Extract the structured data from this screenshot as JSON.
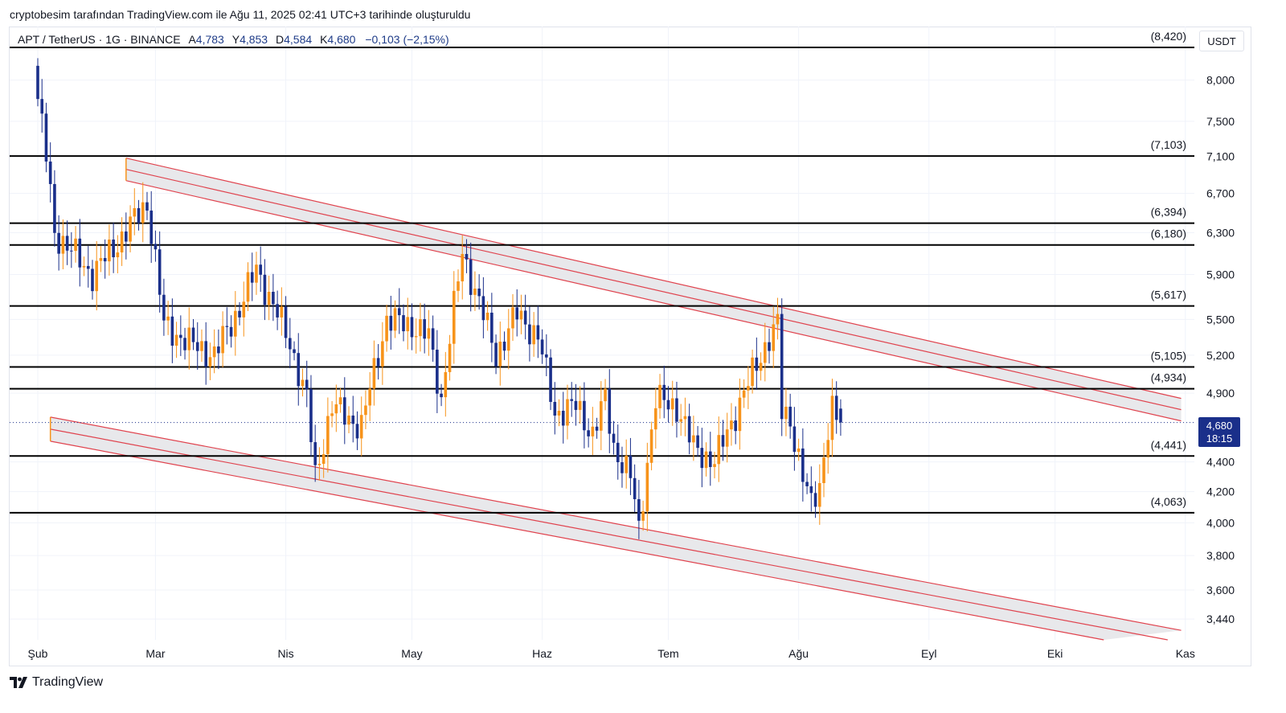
{
  "caption": "cryptobesim tarafından TradingView.com ile Ağu 11, 2025 02:41 UTC+3 tarihinde oluşturuldu",
  "legend": {
    "symbol": "APT / TetherUS · 1G · BINANCE",
    "open_label": "A",
    "open": "4,783",
    "high_label": "Y",
    "high": "4,853",
    "low_label": "D",
    "low": "4,584",
    "close_label": "K",
    "close": "4,680",
    "change": "−0,103 (−2,15%)"
  },
  "unit": "USDT",
  "current_price": {
    "value": "4,680",
    "countdown": "18:15"
  },
  "brand": "TradingView",
  "colors": {
    "up": "#f7931a",
    "down": "#1a2f8a",
    "channel": "#e0434e",
    "level": "#000000",
    "fill": "#e6e6e9"
  },
  "chart_data": {
    "type": "candlestick",
    "timeframe": "1G",
    "x_ticks": [
      "Şub",
      "Mar",
      "Nis",
      "May",
      "Haz",
      "Tem",
      "Ağu",
      "Eyl",
      "Eki",
      "Kas"
    ],
    "y_ticks": [
      "8,000",
      "7,500",
      "7,100",
      "6,700",
      "6,300",
      "5,900",
      "5,500",
      "5,200",
      "4,900",
      "4,400",
      "4,200",
      "4,000",
      "3,800",
      "3,600",
      "3,440"
    ],
    "y_log": true,
    "ylim": [
      3.33,
      8.7
    ],
    "horizontal_levels": [
      {
        "value": 8.42,
        "label": "(8,420)"
      },
      {
        "value": 7.103,
        "label": "(7,103)"
      },
      {
        "value": 6.394,
        "label": "(6,394)"
      },
      {
        "value": 6.18,
        "label": "(6,180)"
      },
      {
        "value": 5.617,
        "label": "(5,617)"
      },
      {
        "value": 5.105,
        "label": "(5,105)"
      },
      {
        "value": 4.934,
        "label": "(4,934)"
      },
      {
        "value": 4.441,
        "label": "(4,441)"
      },
      {
        "value": 4.063,
        "label": "(4,063)"
      }
    ],
    "channel": {
      "upper_band": [
        {
          "date": "2025-02-22",
          "value": 7.08
        },
        {
          "date": "2025-10-31",
          "value": 4.86
        }
      ],
      "lower_band": [
        {
          "date": "2025-02-04",
          "value": 4.72
        },
        {
          "date": "2025-10-31",
          "value": 3.38
        }
      ]
    },
    "anchors": [
      {
        "date": "2025-02-01",
        "value": 8.1
      },
      {
        "date": "2025-02-04",
        "value": 7.1
      },
      {
        "date": "2025-02-06",
        "value": 6.3
      },
      {
        "date": "2025-02-15",
        "value": 5.9
      },
      {
        "date": "2025-02-21",
        "value": 6.2
      },
      {
        "date": "2025-02-28",
        "value": 6.6
      },
      {
        "date": "2025-03-04",
        "value": 5.45
      },
      {
        "date": "2025-03-10",
        "value": 5.3
      },
      {
        "date": "2025-03-16",
        "value": 5.2
      },
      {
        "date": "2025-03-22",
        "value": 5.6
      },
      {
        "date": "2025-03-26",
        "value": 5.95
      },
      {
        "date": "2025-04-03",
        "value": 5.3
      },
      {
        "date": "2025-04-07",
        "value": 4.85
      },
      {
        "date": "2025-04-09",
        "value": 4.3
      },
      {
        "date": "2025-04-13",
        "value": 4.8
      },
      {
        "date": "2025-04-20",
        "value": 4.65
      },
      {
        "date": "2025-04-26",
        "value": 5.5
      },
      {
        "date": "2025-05-02",
        "value": 5.45
      },
      {
        "date": "2025-05-06",
        "value": 5.35
      },
      {
        "date": "2025-05-09",
        "value": 4.85
      },
      {
        "date": "2025-05-14",
        "value": 6.1
      },
      {
        "date": "2025-05-18",
        "value": 5.65
      },
      {
        "date": "2025-05-22",
        "value": 5.2
      },
      {
        "date": "2025-05-27",
        "value": 5.55
      },
      {
        "date": "2025-06-01",
        "value": 5.35
      },
      {
        "date": "2025-06-05",
        "value": 4.75
      },
      {
        "date": "2025-06-10",
        "value": 4.8
      },
      {
        "date": "2025-06-14",
        "value": 4.6
      },
      {
        "date": "2025-06-17",
        "value": 4.85
      },
      {
        "date": "2025-06-19",
        "value": 4.5
      },
      {
        "date": "2025-06-23",
        "value": 4.3
      },
      {
        "date": "2025-06-25",
        "value": 3.95
      },
      {
        "date": "2025-06-29",
        "value": 4.85
      },
      {
        "date": "2025-07-04",
        "value": 4.8
      },
      {
        "date": "2025-07-08",
        "value": 4.5
      },
      {
        "date": "2025-07-13",
        "value": 4.4
      },
      {
        "date": "2025-07-18",
        "value": 4.75
      },
      {
        "date": "2025-07-22",
        "value": 5.05
      },
      {
        "date": "2025-07-26",
        "value": 5.35
      },
      {
        "date": "2025-07-28",
        "value": 5.45
      },
      {
        "date": "2025-07-29",
        "value": 4.75
      },
      {
        "date": "2025-07-31",
        "value": 4.7
      },
      {
        "date": "2025-08-03",
        "value": 4.3
      },
      {
        "date": "2025-08-05",
        "value": 4.1
      },
      {
        "date": "2025-08-07",
        "value": 4.25
      },
      {
        "date": "2025-08-09",
        "value": 4.65
      },
      {
        "date": "2025-08-10",
        "value": 4.78
      },
      {
        "date": "2025-08-11",
        "value": 4.68
      }
    ],
    "last_candle": {
      "date": "2025-08-11",
      "open": 4.783,
      "high": 4.853,
      "low": 4.584,
      "close": 4.68
    }
  }
}
